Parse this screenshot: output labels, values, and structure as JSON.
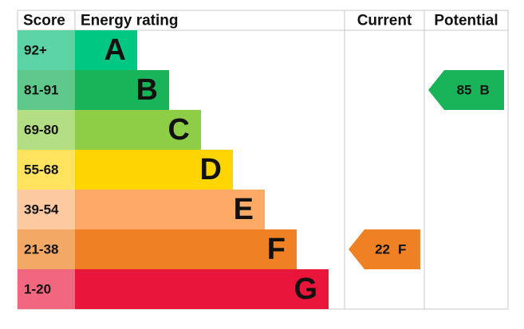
{
  "headers": [
    "Score",
    "Energy rating",
    "Current",
    "Potential"
  ],
  "bands": [
    {
      "score": "92+",
      "letter": "A"
    },
    {
      "score": "81-91",
      "letter": "B"
    },
    {
      "score": "69-80",
      "letter": "C"
    },
    {
      "score": "55-68",
      "letter": "D"
    },
    {
      "score": "39-54",
      "letter": "E"
    },
    {
      "score": "21-38",
      "letter": "F"
    },
    {
      "score": "1-20",
      "letter": "G"
    }
  ],
  "current": {
    "value": 22,
    "band": "F"
  },
  "potential": {
    "value": 85,
    "band": "B"
  }
}
